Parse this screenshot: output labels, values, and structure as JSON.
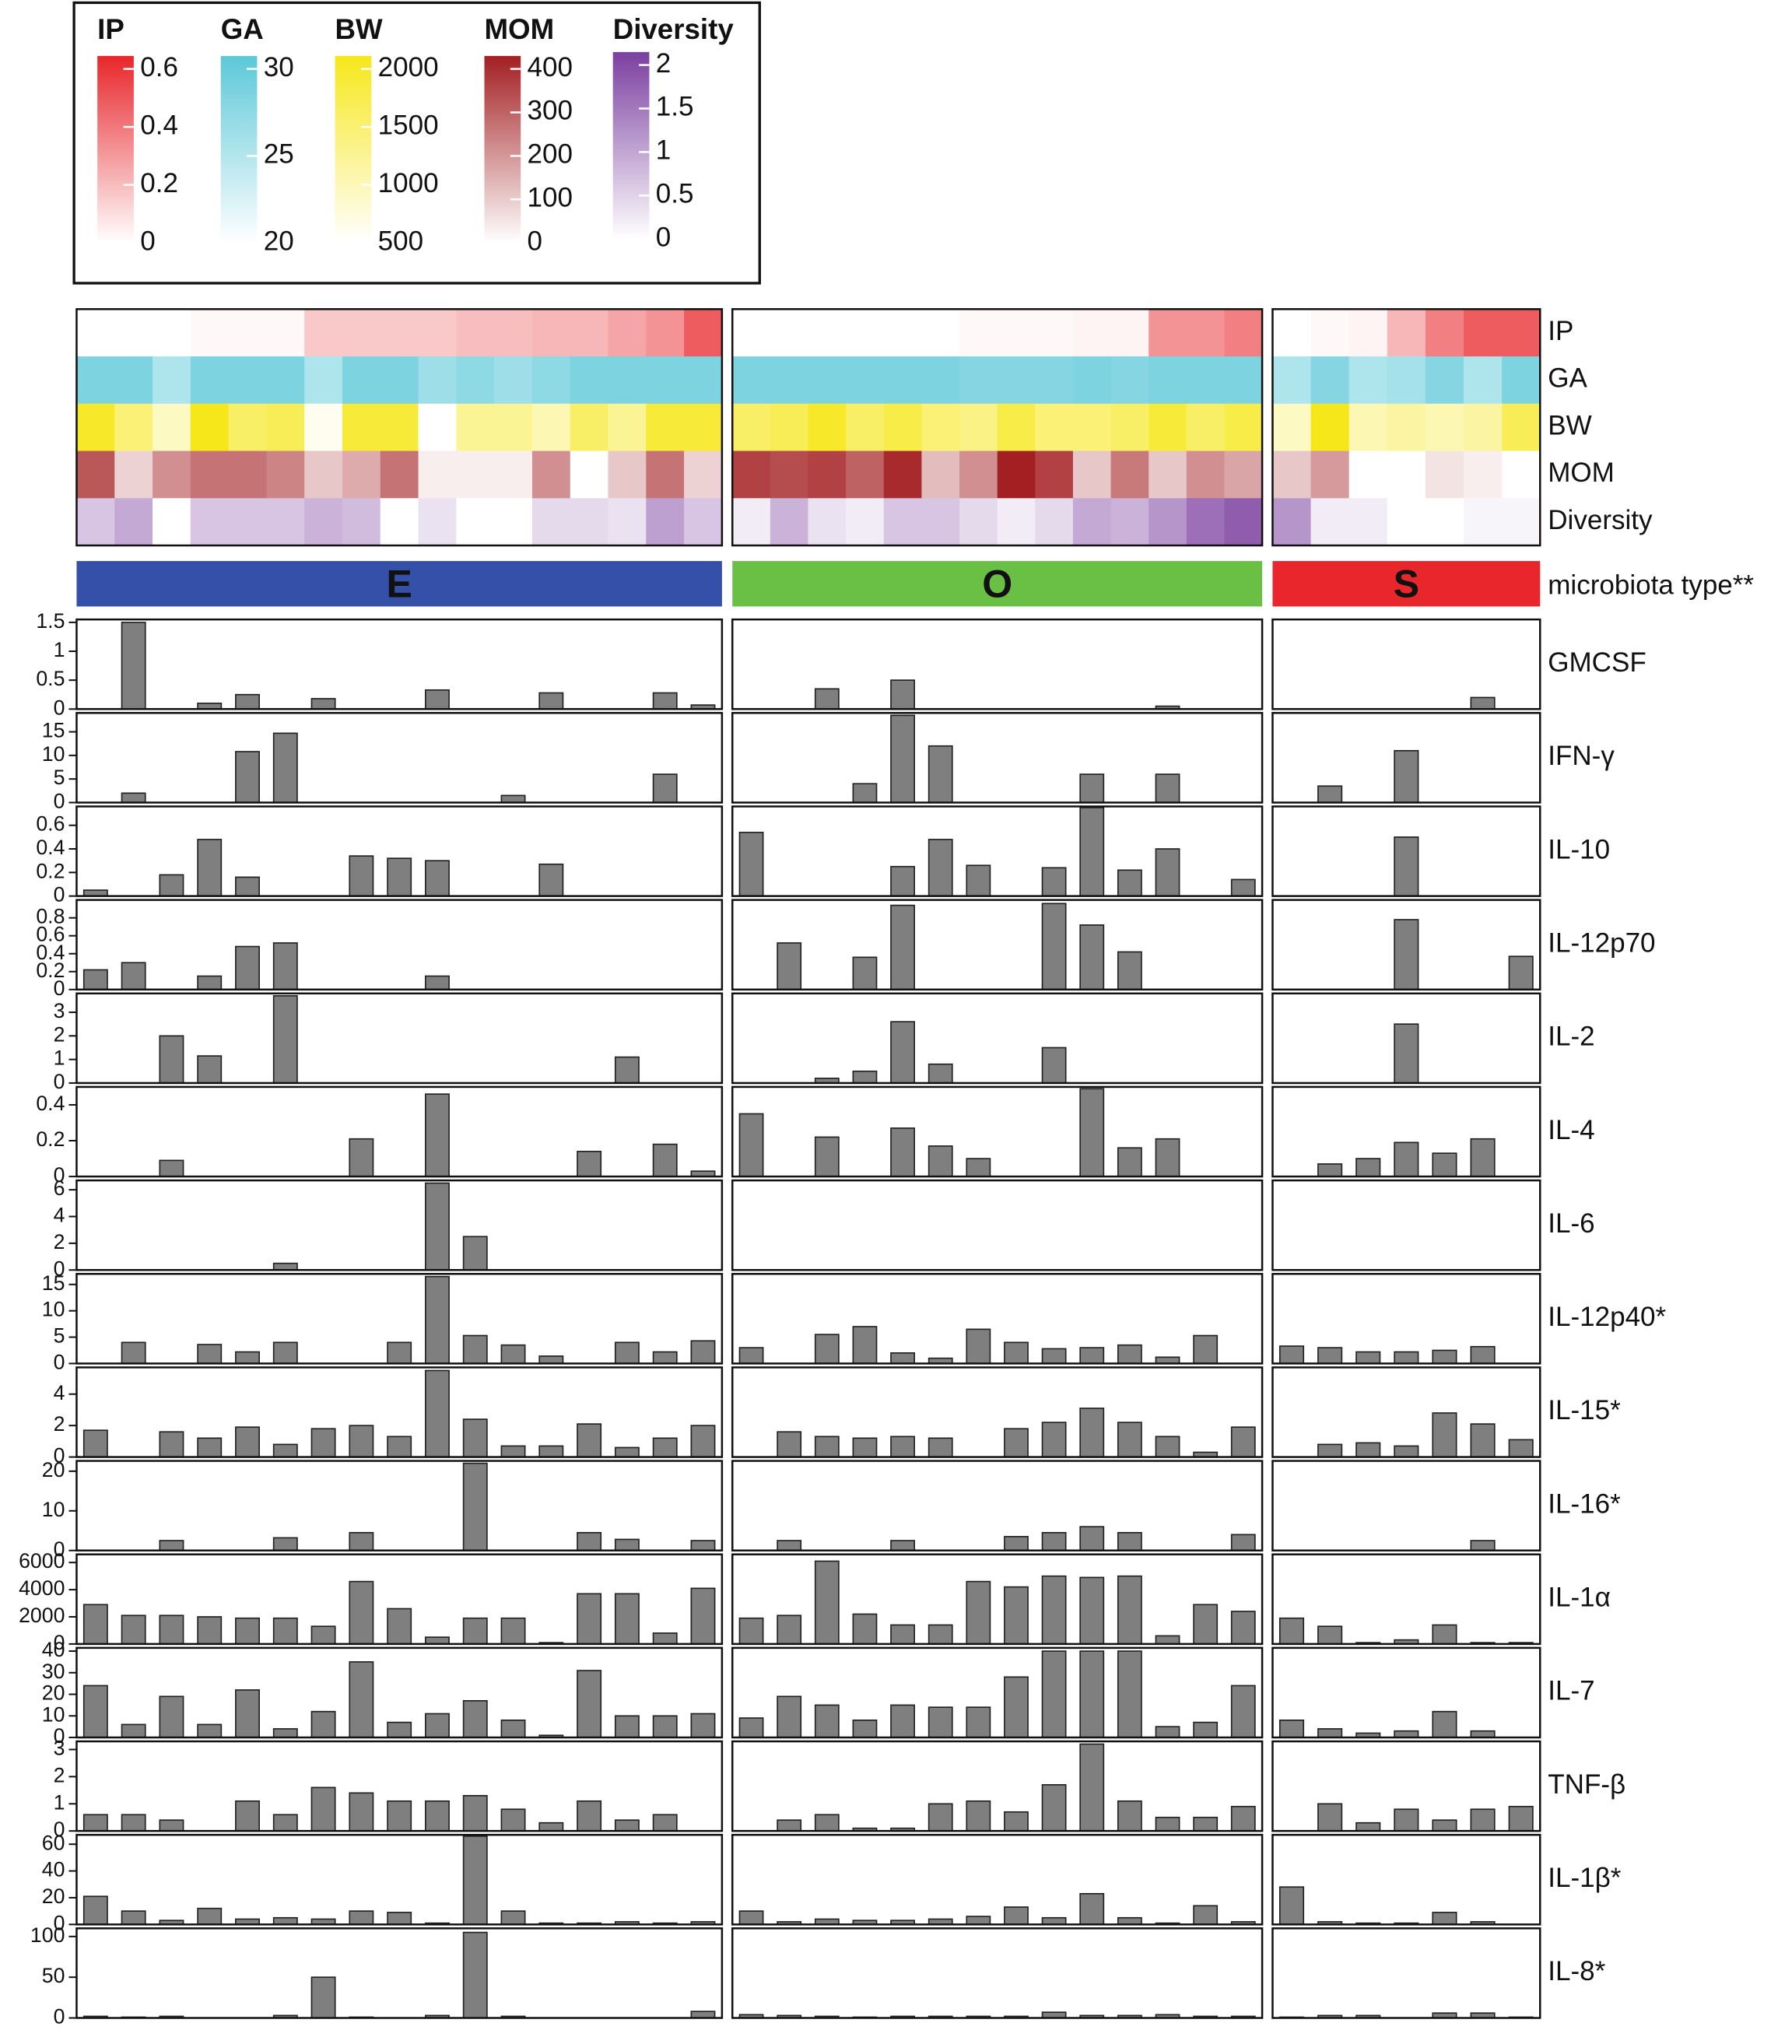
{
  "chart_data": {
    "type": "heatmap-bar",
    "group_title": "microbiota type**",
    "groups": [
      {
        "name": "E",
        "color": "#3450a8"
      },
      {
        "name": "O",
        "color": "#6abf45"
      },
      {
        "name": "S",
        "color": "#e8262b"
      }
    ],
    "bar_color": "#7f7f7f",
    "scales": [
      {
        "name": "IP",
        "color": "#e8262b",
        "lim": [
          0,
          0.6
        ],
        "ticks": [
          0,
          0.2,
          0.4,
          0.6
        ]
      },
      {
        "name": "GA",
        "color": "#5cc8d8",
        "lim": [
          20,
          30
        ],
        "ticks": [
          20,
          25,
          30
        ]
      },
      {
        "name": "BW",
        "color": "#f6e71a",
        "lim": [
          500,
          2000
        ],
        "ticks": [
          500,
          1000,
          1500,
          2000
        ]
      },
      {
        "name": "MOM",
        "color": "#a31f22",
        "lim": [
          0,
          400
        ],
        "ticks": [
          0,
          100,
          200,
          300,
          400
        ]
      },
      {
        "name": "Diversity",
        "color": "#7b3fa0",
        "lim": [
          0,
          2
        ],
        "ticks": [
          0,
          0.5,
          1,
          1.5,
          2
        ]
      }
    ],
    "heatmap": [
      {
        "name": "IP",
        "values": [
          [
            0,
            0,
            0,
            0.02,
            0.02,
            0.02,
            0.15,
            0.15,
            0.15,
            0.15,
            0.18,
            0.18,
            0.2,
            0.2,
            0.25,
            0.3,
            0.45
          ],
          [
            0,
            0,
            0,
            0,
            0,
            0,
            0.02,
            0.02,
            0.02,
            0.03,
            0.03,
            0.3,
            0.3,
            0.35
          ],
          [
            0,
            0.02,
            0.03,
            0.2,
            0.35,
            0.45,
            0.45
          ]
        ]
      },
      {
        "name": "GA",
        "values": [
          [
            28,
            28,
            25,
            28,
            28,
            28,
            25,
            28,
            28,
            26,
            27,
            26,
            27,
            28,
            28,
            28,
            28
          ],
          [
            28,
            28,
            28,
            28,
            28,
            28,
            27.5,
            27.5,
            27.5,
            28,
            27.5,
            28,
            28,
            28
          ],
          [
            25,
            27.5,
            25,
            25.5,
            27.5,
            25,
            28
          ]
        ]
      },
      {
        "name": "BW",
        "values": [
          [
            1900,
            1400,
            900,
            2000,
            1500,
            1600,
            600,
            1800,
            1800,
            500,
            1200,
            1200,
            1000,
            1500,
            1200,
            1800,
            1800
          ],
          [
            1500,
            1600,
            1900,
            1500,
            1700,
            1400,
            1300,
            1700,
            1400,
            1400,
            1500,
            1800,
            1500,
            1700
          ],
          [
            900,
            2000,
            1000,
            1100,
            1000,
            1100,
            1600
          ]
        ]
      },
      {
        "name": "MOM",
        "values": [
          [
            300,
            80,
            200,
            250,
            250,
            220,
            100,
            150,
            250,
            30,
            30,
            30,
            200,
            0,
            100,
            250,
            80
          ],
          [
            340,
            320,
            340,
            280,
            380,
            120,
            200,
            400,
            340,
            100,
            240,
            100,
            200,
            160
          ],
          [
            100,
            180,
            0,
            0,
            50,
            30,
            0
          ]
        ]
      },
      {
        "name": "Diversity",
        "values": [
          [
            0.6,
            0.9,
            0,
            0.6,
            0.6,
            0.6,
            0.8,
            0.7,
            0,
            0.3,
            0,
            0,
            0.4,
            0.4,
            0.3,
            1.0,
            0.6
          ],
          [
            0.2,
            0.8,
            0.3,
            0.2,
            0.6,
            0.6,
            0.4,
            0.2,
            0.4,
            0.9,
            0.8,
            1.1,
            1.5,
            1.7
          ],
          [
            1.1,
            0.2,
            0.2,
            0,
            0,
            0.1,
            0.1
          ]
        ]
      }
    ],
    "panels": [
      {
        "name": "GMCSF",
        "ylim": [
          0,
          1.55
        ],
        "yticks": [
          0,
          0.5,
          1,
          1.5
        ],
        "values": [
          [
            0,
            1.5,
            0,
            0.1,
            0.25,
            0,
            0.18,
            0,
            0,
            0.33,
            0,
            0,
            0.28,
            0,
            0,
            0.28,
            0.07
          ],
          [
            0,
            0,
            0.35,
            0,
            0.5,
            0,
            0,
            0,
            0,
            0,
            0,
            0.05,
            0,
            0
          ],
          [
            0,
            0,
            0,
            0,
            0,
            0.2,
            0
          ]
        ]
      },
      {
        "name": "IFN-γ",
        "ylim": [
          0,
          19
        ],
        "yticks": [
          0,
          5,
          10,
          15
        ],
        "values": [
          [
            0,
            2,
            0,
            0,
            10.8,
            14.7,
            0,
            0,
            0,
            0,
            0,
            1.5,
            0,
            0,
            0,
            6,
            0
          ],
          [
            0,
            0,
            0,
            4,
            18.5,
            12,
            0,
            0,
            0,
            6,
            0,
            6,
            0,
            0
          ],
          [
            0,
            3.5,
            0,
            11,
            0,
            0,
            0
          ]
        ]
      },
      {
        "name": "IL-10",
        "ylim": [
          0,
          0.76
        ],
        "yticks": [
          0,
          0.2,
          0.4,
          0.6
        ],
        "values": [
          [
            0.05,
            0,
            0.18,
            0.48,
            0.16,
            0,
            0,
            0.34,
            0.32,
            0.3,
            0,
            0,
            0.27,
            0,
            0,
            0,
            0
          ],
          [
            0.54,
            0,
            0,
            0,
            0.25,
            0.48,
            0.26,
            0,
            0.24,
            0.75,
            0.22,
            0.4,
            0,
            0.14
          ],
          [
            0,
            0,
            0,
            0.5,
            0,
            0,
            0
          ]
        ]
      },
      {
        "name": "IL-12p70",
        "ylim": [
          0,
          1
        ],
        "yticks": [
          0,
          0.2,
          0.4,
          0.6,
          0.8
        ],
        "values": [
          [
            0.22,
            0.3,
            0,
            0.15,
            0.48,
            0.52,
            0,
            0,
            0,
            0.15,
            0,
            0,
            0,
            0,
            0,
            0,
            0
          ],
          [
            0,
            0.52,
            0,
            0.36,
            0.94,
            0,
            0,
            0,
            0.96,
            0.72,
            0.42,
            0,
            0,
            0
          ],
          [
            0,
            0,
            0,
            0.78,
            0,
            0,
            0.37
          ]
        ]
      },
      {
        "name": "IL-2",
        "ylim": [
          0,
          3.8
        ],
        "yticks": [
          0,
          1,
          2,
          3
        ],
        "values": [
          [
            0,
            0,
            2,
            1.15,
            0,
            3.7,
            0,
            0,
            0,
            0,
            0,
            0,
            0,
            0,
            1.1,
            0,
            0
          ],
          [
            0,
            0,
            0.2,
            0.5,
            2.6,
            0.8,
            0,
            0,
            1.5,
            0,
            0,
            0,
            0,
            0
          ],
          [
            0,
            0,
            0,
            2.5,
            0,
            0,
            0
          ]
        ]
      },
      {
        "name": "IL-4",
        "ylim": [
          0,
          0.5
        ],
        "yticks": [
          0,
          0.2,
          0.4
        ],
        "values": [
          [
            0,
            0,
            0.09,
            0,
            0,
            0,
            0,
            0.21,
            0,
            0.46,
            0,
            0,
            0,
            0.14,
            0,
            0.18,
            0.03
          ],
          [
            0.35,
            0,
            0.22,
            0,
            0.27,
            0.17,
            0.1,
            0,
            0,
            0.49,
            0.16,
            0.21,
            0,
            0
          ],
          [
            0,
            0.07,
            0.1,
            0.19,
            0.13,
            0.21,
            0
          ]
        ]
      },
      {
        "name": "IL-6",
        "ylim": [
          0,
          6.7
        ],
        "yticks": [
          0,
          2,
          4,
          6
        ],
        "values": [
          [
            0,
            0,
            0,
            0,
            0,
            0.5,
            0,
            0,
            0,
            6.5,
            2.5,
            0,
            0,
            0,
            0,
            0,
            0
          ],
          [
            0,
            0,
            0,
            0,
            0,
            0,
            0,
            0,
            0,
            0,
            0,
            0,
            0,
            0
          ],
          [
            0,
            0,
            0,
            0,
            0,
            0,
            0
          ]
        ]
      },
      {
        "name": "IL-12p40*",
        "ylim": [
          0,
          17
        ],
        "yticks": [
          0,
          5,
          10,
          15
        ],
        "values": [
          [
            0,
            4,
            0,
            3.6,
            2.2,
            4,
            0,
            0,
            4,
            16.5,
            5.3,
            3.5,
            1.4,
            0,
            4,
            2.2,
            4.3
          ],
          [
            3,
            0,
            5.5,
            7,
            2,
            1,
            6.5,
            4,
            2.8,
            3,
            3.5,
            1.2,
            5.3,
            0
          ],
          [
            3.3,
            3,
            2.2,
            2.2,
            2.5,
            3.2,
            0
          ]
        ]
      },
      {
        "name": "IL-15*",
        "ylim": [
          0,
          5.7
        ],
        "yticks": [
          0,
          2,
          4
        ],
        "values": [
          [
            1.7,
            0,
            1.6,
            1.2,
            1.9,
            0.8,
            1.8,
            2,
            1.3,
            5.5,
            2.4,
            0.7,
            0.7,
            2.1,
            0.6,
            1.2,
            2
          ],
          [
            0,
            1.6,
            1.3,
            1.2,
            1.3,
            1.2,
            0,
            1.8,
            2.2,
            3.1,
            2.2,
            1.3,
            0.3,
            1.9
          ],
          [
            0,
            0.8,
            0.9,
            0.7,
            2.8,
            2.1,
            1.1
          ]
        ]
      },
      {
        "name": "IL-16*",
        "ylim": [
          0,
          22.6
        ],
        "yticks": [
          0,
          10,
          20
        ],
        "values": [
          [
            0,
            0,
            2.5,
            0,
            0,
            3.2,
            0,
            4.5,
            0,
            0,
            22,
            0,
            0,
            4.5,
            2.8,
            0,
            2.5
          ],
          [
            0,
            2.5,
            0,
            0,
            2.5,
            0,
            0,
            3.5,
            4.5,
            6,
            4.5,
            0,
            0,
            4
          ],
          [
            0,
            0,
            0,
            0,
            0,
            2.5,
            0
          ]
        ]
      },
      {
        "name": "IL-1α",
        "ylim": [
          0,
          6600
        ],
        "yticks": [
          0,
          2000,
          4000,
          6000
        ],
        "values": [
          [
            2900,
            2100,
            2100,
            2000,
            1900,
            1900,
            1300,
            4600,
            2600,
            500,
            1900,
            1900,
            100,
            3700,
            3700,
            800,
            4100
          ],
          [
            1900,
            2100,
            6100,
            2200,
            1400,
            1400,
            4600,
            4200,
            5000,
            4900,
            5000,
            600,
            2900,
            2400
          ],
          [
            1900,
            1300,
            100,
            300,
            1400,
            100,
            100
          ]
        ]
      },
      {
        "name": "IL-7",
        "ylim": [
          0,
          41.5
        ],
        "yticks": [
          0,
          10,
          20,
          30,
          40
        ],
        "values": [
          [
            24,
            6,
            19,
            6,
            22,
            4,
            12,
            35,
            7,
            11,
            17,
            8,
            1,
            31,
            10,
            10,
            11
          ],
          [
            9,
            19,
            15,
            8,
            15,
            14,
            14,
            28,
            40,
            40,
            40,
            5,
            7,
            24
          ],
          [
            8,
            4,
            2,
            3,
            12,
            3,
            0
          ]
        ]
      },
      {
        "name": "TNF-β",
        "ylim": [
          0,
          3.3
        ],
        "yticks": [
          0,
          1,
          2,
          3
        ],
        "values": [
          [
            0.6,
            0.6,
            0.4,
            0,
            1.1,
            0.6,
            1.6,
            1.4,
            1.1,
            1.1,
            1.3,
            0.8,
            0.3,
            1.1,
            0.4,
            0.6,
            0
          ],
          [
            0,
            0.4,
            0.6,
            0.1,
            0.1,
            1,
            1.1,
            0.7,
            1.7,
            3.2,
            1.1,
            0.5,
            0.5,
            0.9
          ],
          [
            0,
            1,
            0.3,
            0.8,
            0.4,
            0.8,
            0.9
          ]
        ]
      },
      {
        "name": "IL-1β*",
        "ylim": [
          0,
          67
        ],
        "yticks": [
          0,
          20,
          40,
          60
        ],
        "values": [
          [
            21,
            10,
            3,
            12,
            4,
            5,
            4,
            10,
            9,
            1,
            66,
            10,
            1,
            1,
            2,
            1,
            2
          ],
          [
            10,
            2,
            4,
            3,
            3,
            4,
            6,
            13,
            5,
            23,
            5,
            1,
            14,
            2
          ],
          [
            28,
            2,
            1,
            1,
            9,
            2,
            0
          ]
        ]
      },
      {
        "name": "IL-8*",
        "ylim": [
          0,
          110
        ],
        "yticks": [
          0,
          50,
          100
        ],
        "values": [
          [
            2,
            1,
            2,
            0,
            0,
            3,
            50,
            1,
            0,
            3,
            105,
            2,
            0,
            0,
            0,
            0,
            8
          ],
          [
            4,
            3,
            2,
            1,
            2,
            2,
            2,
            2,
            7,
            3,
            3,
            4,
            2,
            2
          ],
          [
            1,
            3,
            3,
            0,
            6,
            6,
            1
          ]
        ]
      }
    ]
  }
}
